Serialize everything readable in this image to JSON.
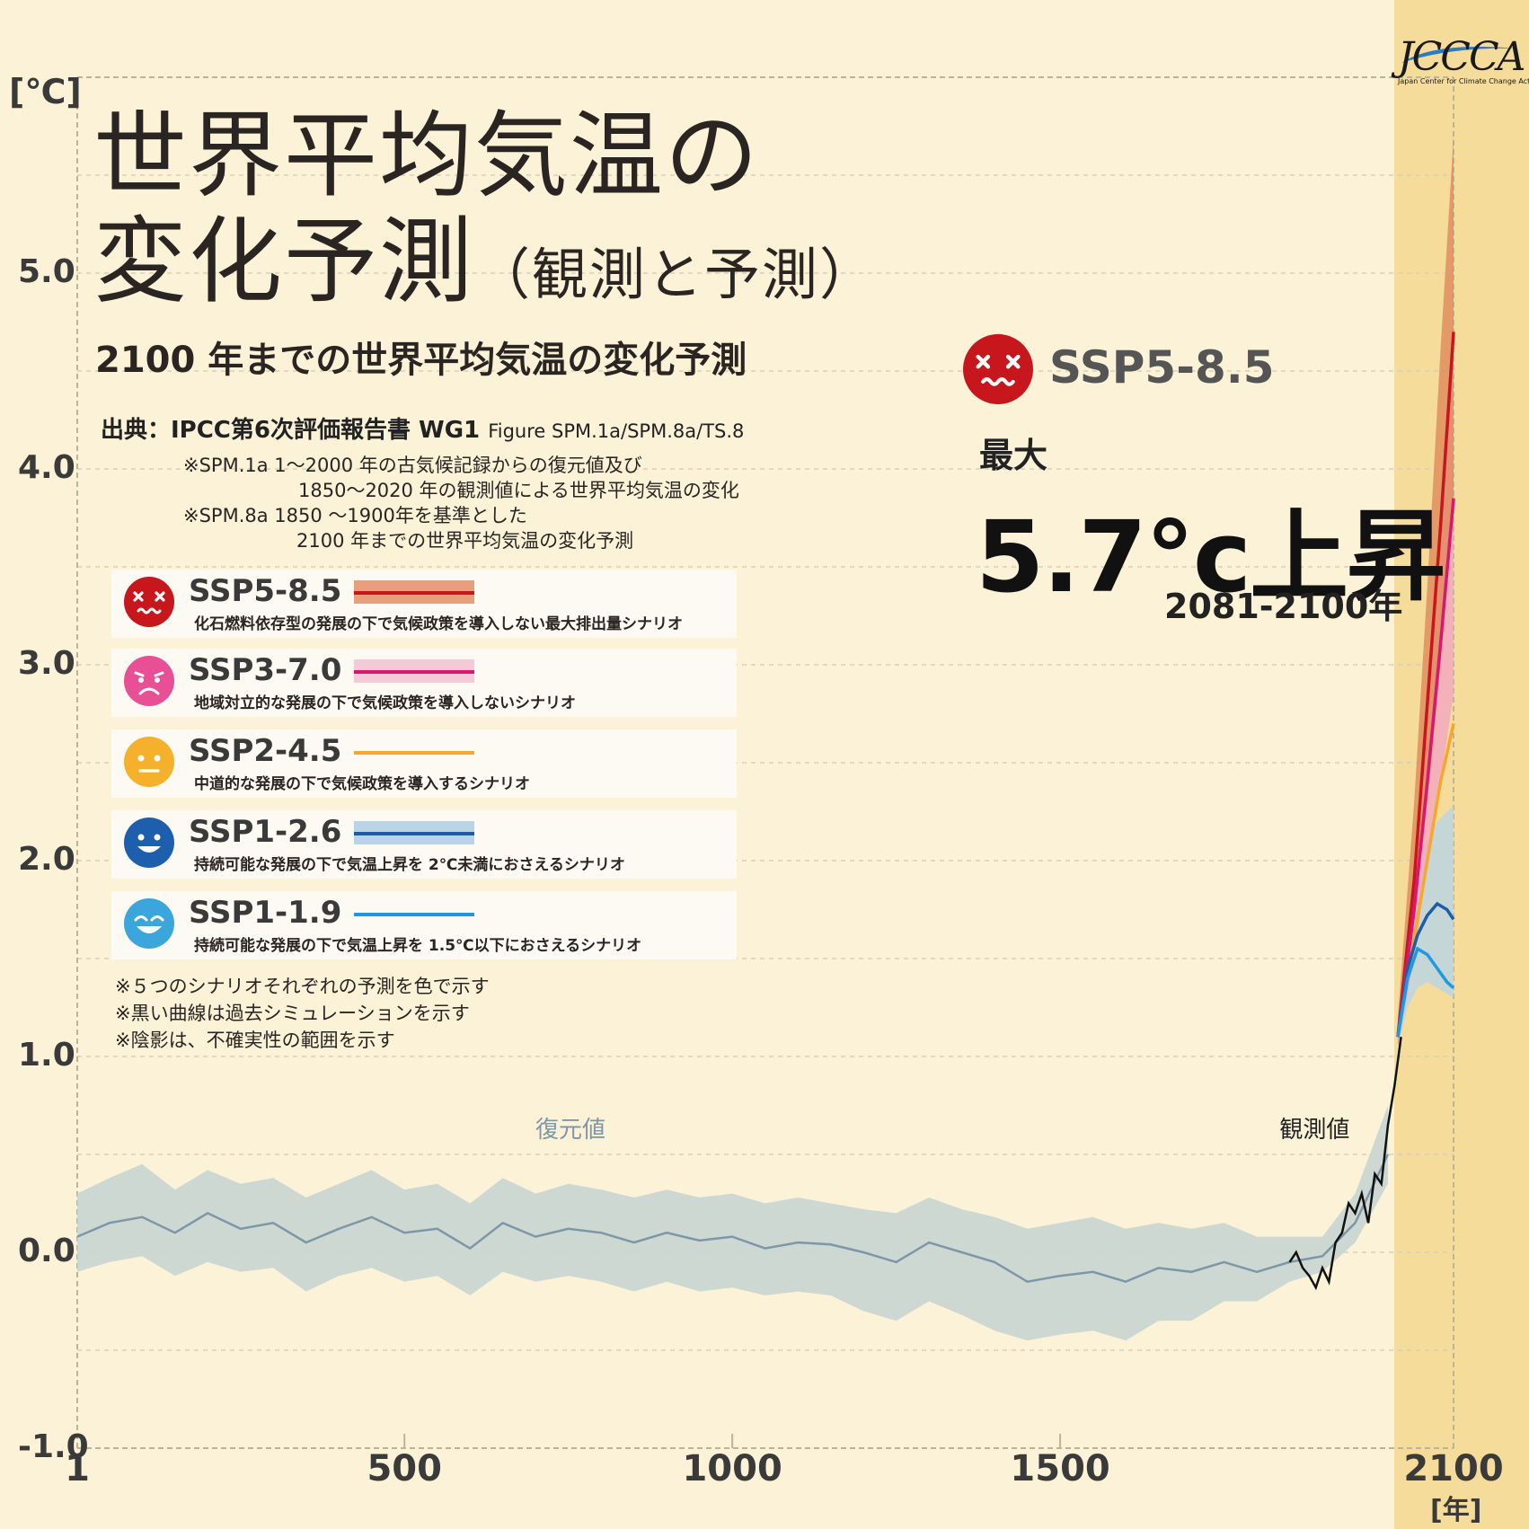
{
  "header": {
    "title_line1": "世界平均気温の",
    "title_line2": "変化予測",
    "title_paren": "（観測と予測）",
    "subtitle": "2100 年までの世界平均気温の変化予測",
    "source_label": "出典：IPCC第6次評価報告書 WG1",
    "source_figure": "Figure SPM.1a/SPM.8a/TS.8",
    "notes": [
      "※SPM.1a 1～2000 年の古気候記録からの復元値及び",
      "1850～2020 年の観測値による世界平均気温の変化",
      "※SPM.8a 1850 ～1900年を基準とした",
      "2100 年までの世界平均気温の変化予測"
    ]
  },
  "logo": {
    "text": "JCCCA",
    "subtext": "Japan Center for Climate Change Actions"
  },
  "legend": [
    {
      "name": "SSP5-8.5",
      "description": "化石燃料依存型の発展の下で気候政策を導入しない最大排出量シナリオ",
      "face_color": "#c8161d",
      "face": "dizzy-face-icon",
      "line_color": "#c8161d",
      "band_color": "#e8a07c"
    },
    {
      "name": "SSP3-7.0",
      "description": "地域対立的な発展の下で気候政策を導入しないシナリオ",
      "face_color": "#e84f95",
      "face": "worried-face-icon",
      "line_color": "#d8186e",
      "band_color": "#f6c9d9"
    },
    {
      "name": "SSP2-4.5",
      "description": "中道的な発展の下で気候政策を導入するシナリオ",
      "face_color": "#f5b12b",
      "face": "neutral-face-icon",
      "line_color": "#f5a82a",
      "band_color": ""
    },
    {
      "name": "SSP1-2.6",
      "description": "持続可能な発展の下で気温上昇を 2℃未満におさえるシナリオ",
      "face_color": "#1d5fae",
      "face": "smiling-face-icon",
      "line_color": "#1b5ea7",
      "band_color": "#b9d4e6"
    },
    {
      "name": "SSP1-1.9",
      "description": "持続可能な発展の下で気温上昇を 1.5℃以下におさえるシナリオ",
      "face_color": "#3aa6dc",
      "face": "grinning-face-icon",
      "line_color": "#1f9ae0",
      "band_color": ""
    }
  ],
  "footnotes": [
    "※５つのシナリオそれぞれの予測を色で示す",
    "※黒い曲線は過去シミュレーションを示す",
    "※陰影は、不確実性の範囲を示す"
  ],
  "highlight": {
    "scenario": "SSP5-8.5",
    "max_label": "最大",
    "max_value": "5.7°c上昇",
    "period": "2081-2100年"
  },
  "chart_data": {
    "type": "line",
    "xlabel": "[年]",
    "ylabel": "[℃]",
    "xlim": [
      1,
      2100
    ],
    "ylim": [
      -1.0,
      6.0
    ],
    "x_ticks": [
      "1",
      "500",
      "1000",
      "1500",
      "2100"
    ],
    "x_tick_values": [
      1,
      500,
      1000,
      1500,
      2100
    ],
    "y_ticks": [
      "5.0",
      "4.0",
      "3.0",
      "2.0",
      "1.0",
      "0.0",
      "-1.0"
    ],
    "y_tick_values": [
      5.0,
      4.0,
      3.0,
      2.0,
      1.0,
      0.0,
      -1.0
    ],
    "projection_period_start": 2015,
    "annotations": [
      {
        "text": "復元値",
        "x": 760,
        "y": 0.6
      },
      {
        "text": "観測値",
        "x": 1895,
        "y": 0.6
      }
    ],
    "reconstruction": {
      "name": "復元値",
      "color": "#7d97a8",
      "band_color": "#c9d5d3",
      "x": [
        1,
        50,
        100,
        150,
        200,
        250,
        300,
        350,
        400,
        450,
        500,
        550,
        600,
        650,
        700,
        750,
        800,
        850,
        900,
        950,
        1000,
        1050,
        1100,
        1150,
        1200,
        1250,
        1300,
        1350,
        1400,
        1450,
        1500,
        1550,
        1600,
        1650,
        1700,
        1750,
        1800,
        1850,
        1900,
        1950,
        2000
      ],
      "y": [
        0.08,
        0.15,
        0.18,
        0.1,
        0.2,
        0.12,
        0.15,
        0.05,
        0.12,
        0.18,
        0.1,
        0.12,
        0.02,
        0.15,
        0.08,
        0.12,
        0.1,
        0.05,
        0.1,
        0.06,
        0.08,
        0.02,
        0.05,
        0.04,
        0.0,
        -0.05,
        0.05,
        0.0,
        -0.05,
        -0.15,
        -0.12,
        -0.1,
        -0.15,
        -0.08,
        -0.1,
        -0.05,
        -0.1,
        -0.05,
        -0.02,
        0.15,
        0.5
      ],
      "lower": [
        -0.1,
        -0.05,
        -0.02,
        -0.12,
        -0.05,
        -0.1,
        -0.08,
        -0.2,
        -0.12,
        -0.08,
        -0.15,
        -0.12,
        -0.22,
        -0.1,
        -0.15,
        -0.12,
        -0.15,
        -0.2,
        -0.15,
        -0.2,
        -0.18,
        -0.22,
        -0.2,
        -0.22,
        -0.3,
        -0.35,
        -0.25,
        -0.32,
        -0.4,
        -0.45,
        -0.42,
        -0.4,
        -0.45,
        -0.35,
        -0.35,
        -0.25,
        -0.25,
        -0.15,
        -0.1,
        0.05,
        0.35
      ],
      "upper": [
        0.3,
        0.38,
        0.45,
        0.32,
        0.42,
        0.35,
        0.38,
        0.28,
        0.35,
        0.42,
        0.32,
        0.35,
        0.25,
        0.38,
        0.3,
        0.35,
        0.32,
        0.28,
        0.32,
        0.28,
        0.3,
        0.25,
        0.28,
        0.25,
        0.22,
        0.2,
        0.28,
        0.22,
        0.18,
        0.12,
        0.15,
        0.18,
        0.12,
        0.15,
        0.12,
        0.15,
        0.08,
        0.08,
        0.08,
        0.3,
        0.75
      ]
    },
    "observations": {
      "name": "観測値",
      "color": "#111111",
      "x": [
        1850,
        1860,
        1870,
        1880,
        1890,
        1900,
        1910,
        1920,
        1930,
        1940,
        1950,
        1960,
        1970,
        1980,
        1990,
        2000,
        2010,
        2020
      ],
      "y": [
        -0.05,
        0.0,
        -0.08,
        -0.12,
        -0.18,
        -0.08,
        -0.15,
        0.05,
        0.1,
        0.25,
        0.2,
        0.3,
        0.15,
        0.4,
        0.35,
        0.65,
        0.85,
        1.1
      ]
    },
    "series": [
      {
        "name": "SSP5-8.5",
        "color": "#c8161d",
        "band_color": "#e08a5a",
        "x": [
          2015,
          2040,
          2060,
          2080,
          2100
        ],
        "y": [
          1.1,
          1.9,
          2.8,
          3.7,
          4.7
        ],
        "lower": [
          1.05,
          1.7,
          2.3,
          3.0,
          3.8
        ],
        "upper": [
          1.2,
          2.3,
          3.4,
          4.6,
          5.7
        ]
      },
      {
        "name": "SSP3-7.0",
        "color": "#d8186e",
        "band_color": "#f2a6c0",
        "x": [
          2015,
          2040,
          2060,
          2080,
          2100
        ],
        "y": [
          1.1,
          1.75,
          2.4,
          3.1,
          3.85
        ],
        "lower": [
          1.05,
          1.5,
          2.0,
          2.4,
          2.85
        ],
        "upper": [
          1.15,
          2.0,
          2.8,
          3.8,
          4.6
        ]
      },
      {
        "name": "SSP2-4.5",
        "color": "#f5a82a",
        "x": [
          2015,
          2040,
          2060,
          2080,
          2100
        ],
        "y": [
          1.1,
          1.6,
          2.0,
          2.4,
          2.7
        ]
      },
      {
        "name": "SSP1-2.6",
        "color": "#1b5ea7",
        "band_color": "#b9d4e6",
        "x": [
          2015,
          2030,
          2045,
          2060,
          2075,
          2090,
          2100
        ],
        "y": [
          1.1,
          1.45,
          1.62,
          1.72,
          1.78,
          1.75,
          1.7
        ],
        "lower": [
          1.05,
          1.25,
          1.35,
          1.38,
          1.35,
          1.32,
          1.3
        ],
        "upper": [
          1.15,
          1.7,
          1.95,
          2.1,
          2.2,
          2.25,
          2.28
        ]
      },
      {
        "name": "SSP1-1.9",
        "color": "#1f9ae0",
        "x": [
          2015,
          2030,
          2045,
          2060,
          2075,
          2090,
          2100
        ],
        "y": [
          1.1,
          1.4,
          1.55,
          1.52,
          1.45,
          1.38,
          1.35
        ]
      }
    ]
  }
}
